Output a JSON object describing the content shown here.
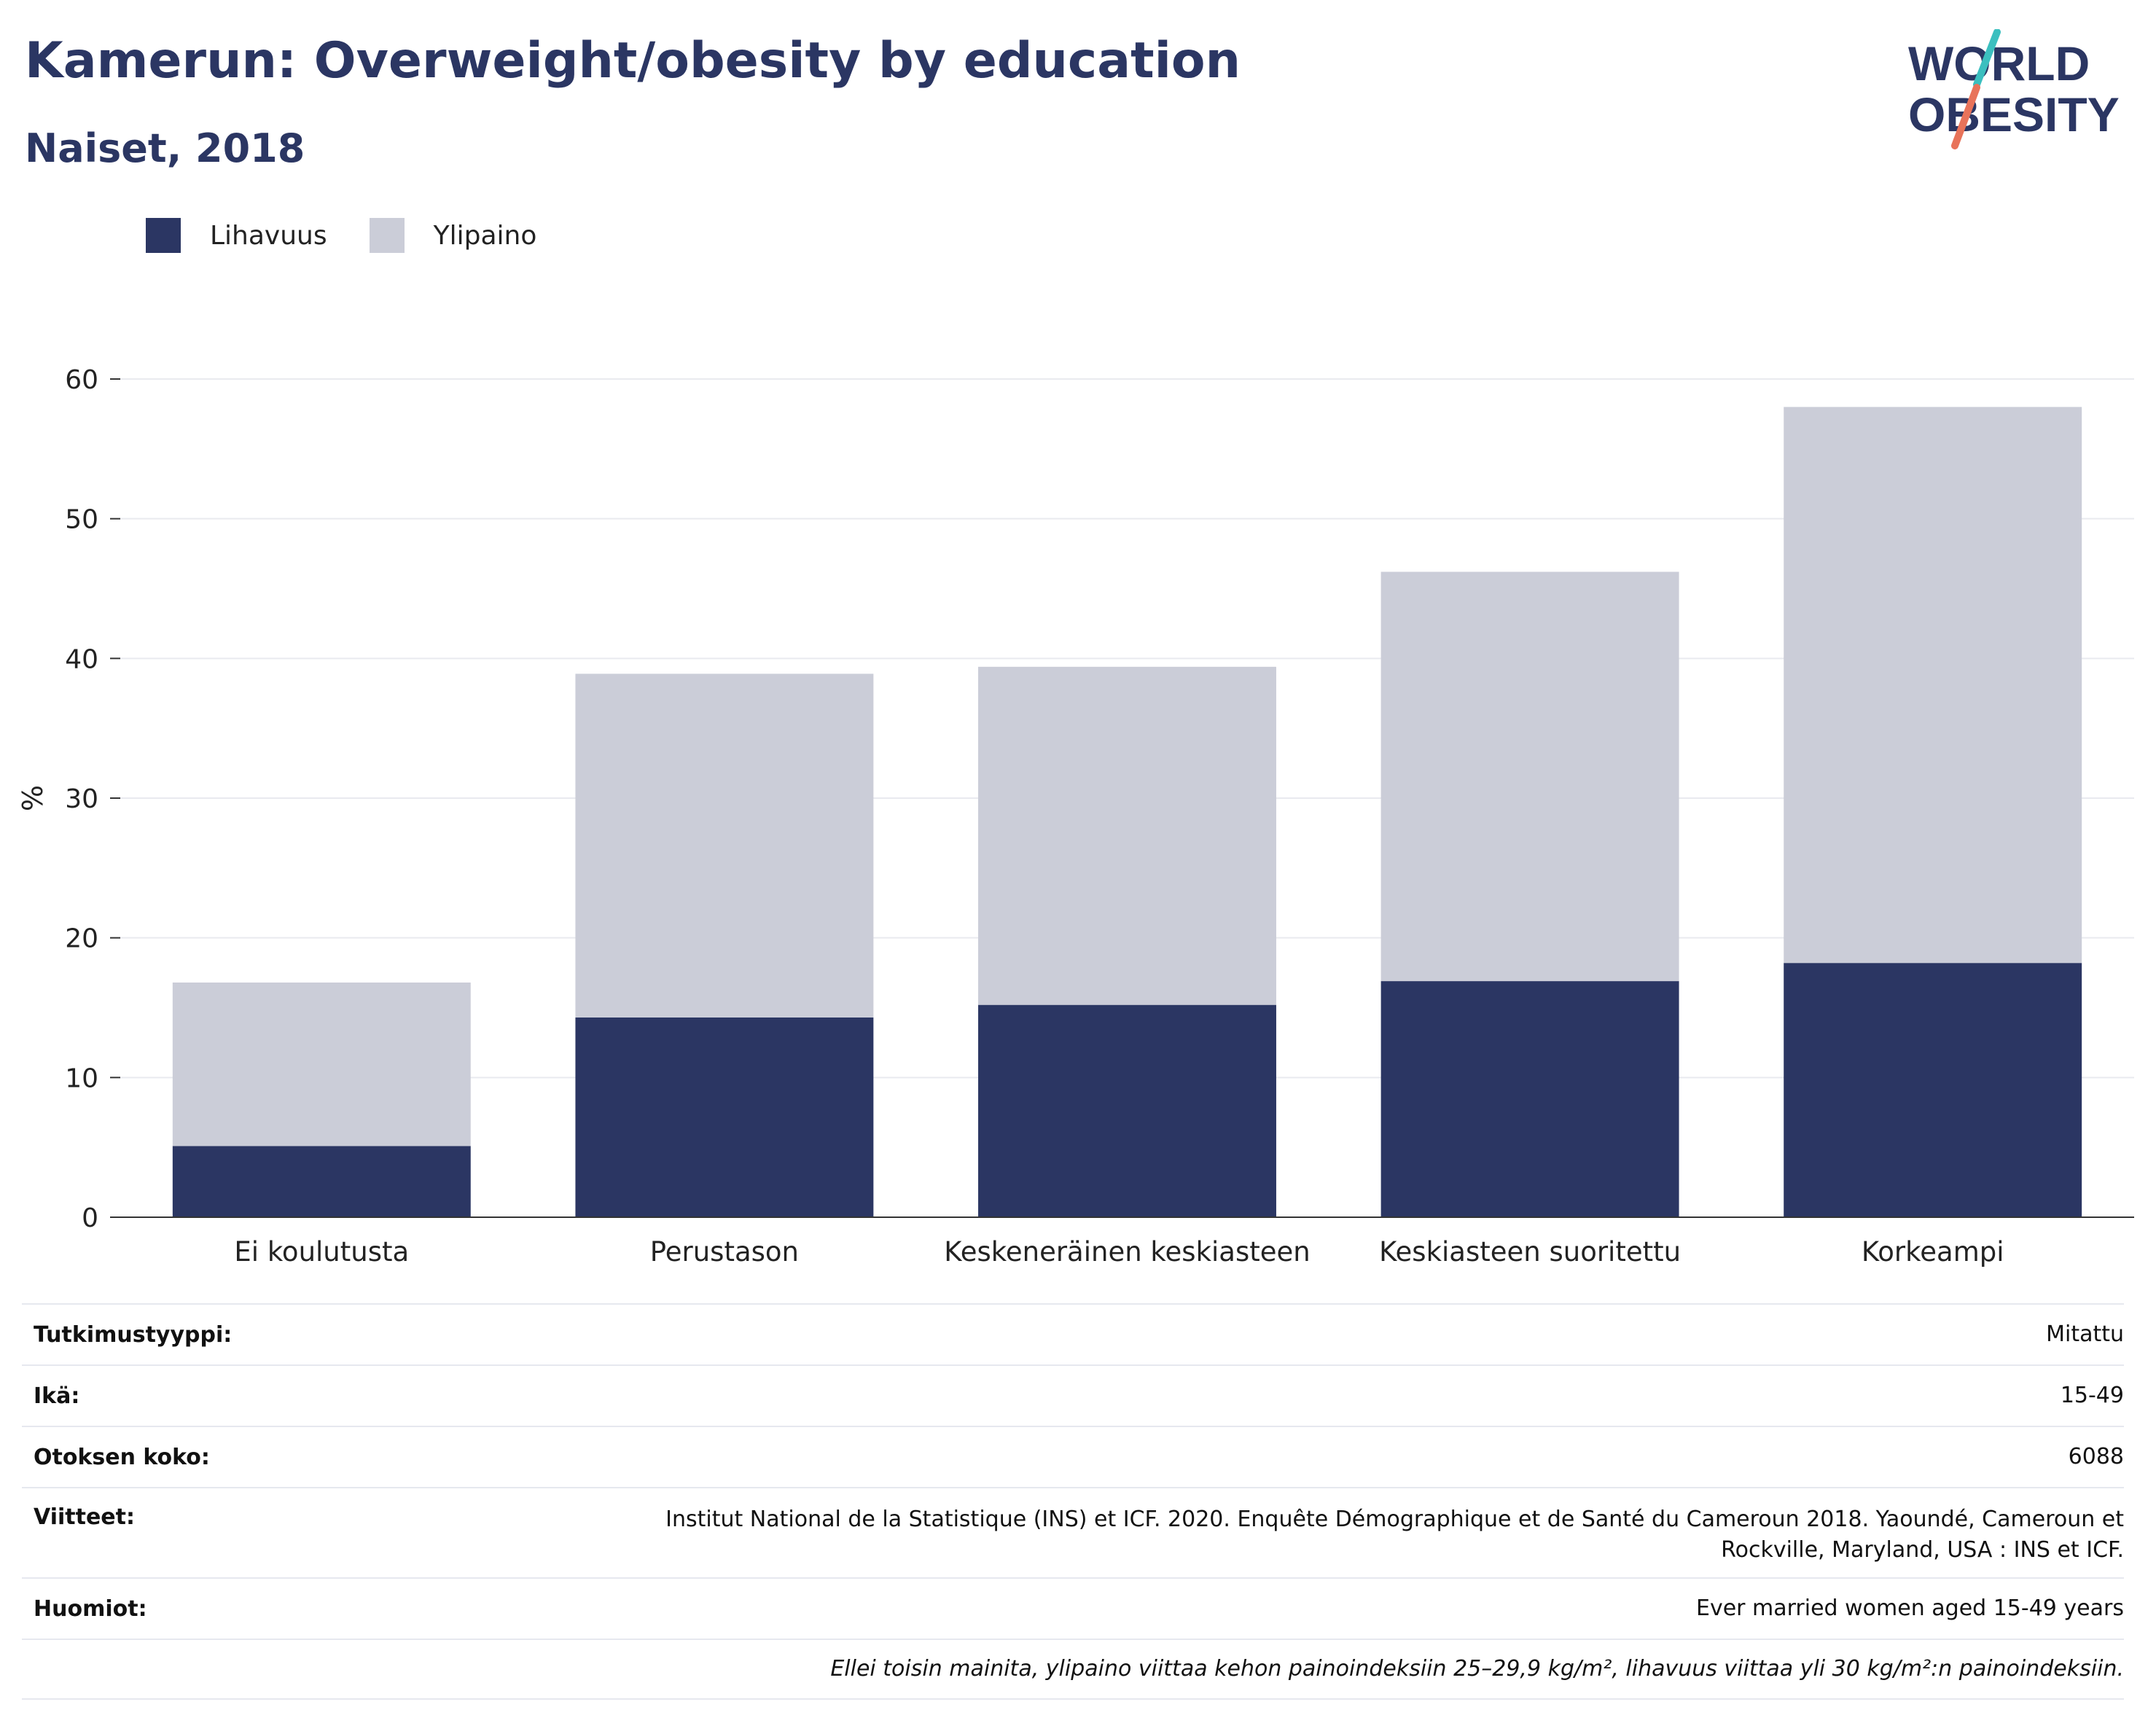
{
  "header": {
    "title": "Kamerun: Overweight/obesity by education",
    "subtitle": "Naiset, 2018"
  },
  "logo": {
    "line1": "WORLD",
    "line2": "OBESITY",
    "colors": {
      "text": "#2b3663",
      "slash_top": "#3bbfbf",
      "slash_bottom": "#e8735a"
    }
  },
  "legend": [
    {
      "label": "Lihavuus",
      "color": "#2b3663"
    },
    {
      "label": "Ylipaino",
      "color": "#cbcdd8"
    }
  ],
  "chart_data": {
    "type": "bar",
    "stacked": true,
    "categories": [
      "Ei koulutusta",
      "Perustason",
      "Keskeneräinen keskiasteen",
      "Keskiasteen suoritettu",
      "Korkeampi"
    ],
    "series": [
      {
        "name": "Lihavuus",
        "color": "#2b3663",
        "values": [
          5.1,
          14.3,
          15.2,
          16.9,
          18.2
        ]
      },
      {
        "name": "Ylipaino",
        "color": "#cbcdd8",
        "values": [
          11.7,
          24.6,
          24.2,
          29.3,
          39.8
        ]
      }
    ],
    "ylabel": "%",
    "ylim": [
      0,
      60
    ],
    "yticks": [
      0,
      10,
      20,
      30,
      40,
      50,
      60
    ],
    "grid": true,
    "legend_position": "top-left"
  },
  "info": {
    "rows": [
      {
        "key": "Tutkimustyyppi:",
        "value": "Mitattu"
      },
      {
        "key": "Ikä:",
        "value": "15-49"
      },
      {
        "key": "Otoksen koko:",
        "value": "6088"
      },
      {
        "key": "Viitteet:",
        "value": "Institut National de la Statistique (INS) et ICF. 2020. Enquête Démographique et de Santé du Cameroun 2018. Yaoundé, Cameroun et Rockville, Maryland, USA : INS et ICF."
      },
      {
        "key": "Huomiot:",
        "value": "Ever married women aged 15-49 years"
      }
    ],
    "footnote": "Ellei toisin mainita, ylipaino viittaa kehon painoindeksiin 25–29,9 kg/m², lihavuus viittaa yli 30 kg/m²:n painoindeksiin."
  }
}
